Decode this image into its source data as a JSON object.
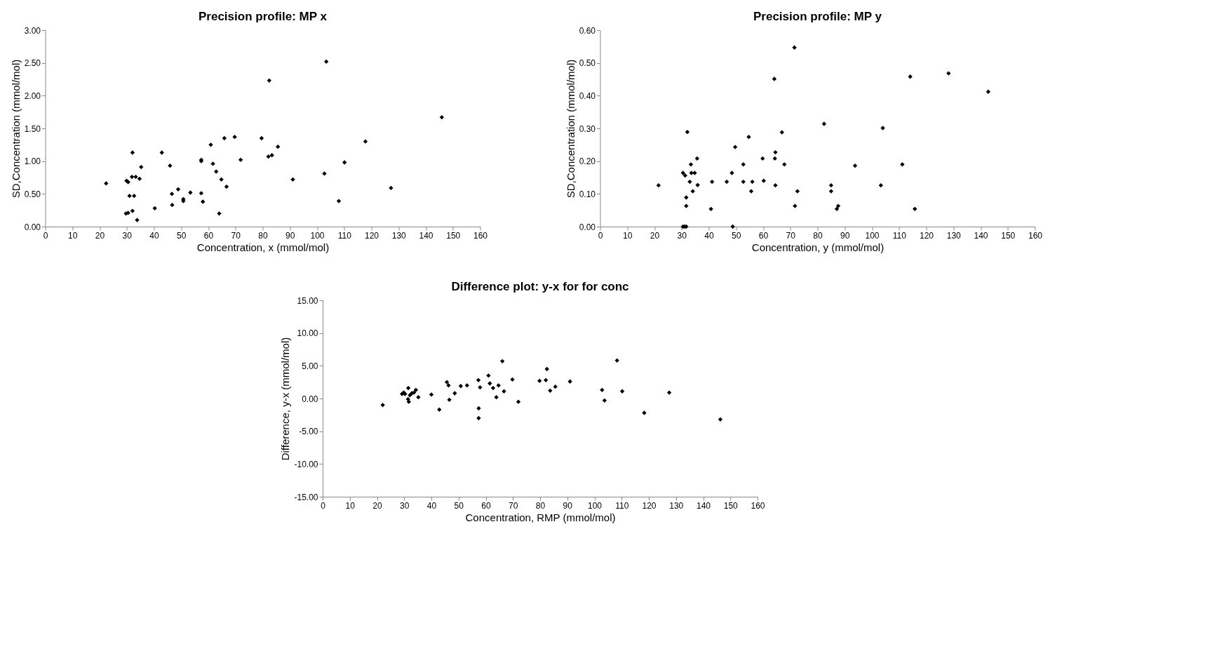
{
  "chart_data": [
    {
      "type": "scatter",
      "title": "Precision profile: MP x",
      "xlabel": "Concentration, x (mmol/mol)",
      "ylabel": "SD,Concentration (mmol/mol)",
      "marker": "diamond",
      "series": [
        {
          "color": "#000000",
          "x": [
            22.4,
            29.9,
            30.5,
            31,
            32.7,
            32.1,
            31.9,
            33.3,
            34.7,
            35.3,
            29.7,
            30.5,
            32.1,
            33.8,
            40.3,
            42.9,
            45.9,
            46.6,
            46.7,
            48.9,
            50.8,
            50.8,
            53.4,
            57.4,
            57.4,
            57.4,
            58.0,
            60.9,
            61.7,
            62.9,
            64.8,
            64.0,
            65.9,
            66.7,
            69.7,
            71.9,
            79.6,
            82.4,
            82.1,
            83.4,
            85.6,
            91.1,
            103.4,
            102.7,
            108.0,
            110.1,
            117.8,
            127.2,
            145.9
          ],
          "values": [
            0.66,
            0.7,
            0.68,
            0.47,
            0.47,
            1.13,
            0.76,
            0.76,
            0.73,
            0.91,
            0.2,
            0.21,
            0.24,
            0.1,
            0.28,
            1.13,
            0.93,
            0.5,
            0.33,
            0.57,
            0.42,
            0.39,
            0.52,
            1.02,
            1.0,
            0.51,
            0.38,
            1.25,
            0.96,
            0.84,
            0.72,
            0.2,
            1.35,
            0.61,
            1.37,
            1.02,
            1.35,
            2.23,
            1.07,
            1.09,
            1.22,
            0.72,
            2.52,
            0.81,
            0.39,
            0.98,
            1.3,
            0.59,
            1.67
          ]
        }
      ],
      "xlim": [
        0,
        160
      ],
      "xticks": [
        0,
        10,
        20,
        30,
        40,
        50,
        60,
        70,
        80,
        90,
        100,
        110,
        120,
        130,
        140,
        150,
        160
      ],
      "ylim": [
        0,
        3
      ],
      "yticks": [
        {
          "value": 0,
          "label": "0.00"
        },
        {
          "value": 0.5,
          "label": "0.50"
        },
        {
          "value": 1,
          "label": "1.00"
        },
        {
          "value": 1.5,
          "label": "1.50"
        },
        {
          "value": 2,
          "label": "2.00"
        },
        {
          "value": 2.5,
          "label": "2.50"
        },
        {
          "value": 3,
          "label": "3.00"
        }
      ]
    },
    {
      "type": "scatter",
      "title": "Precision profile: MP y",
      "xlabel": "Concentration, y (mmol/mol)",
      "ylabel": "SD,Concentration (mmol/mol)",
      "marker": "diamond",
      "series": [
        {
          "color": "#000000",
          "x": [
            21.5,
            30.5,
            31.3,
            31.7,
            31.7,
            30.5,
            31.1,
            31.7,
            32.1,
            33.4,
            33.0,
            33.6,
            34.8,
            34.1,
            35.7,
            35.9,
            40.8,
            41.2,
            46.6,
            48.5,
            48.8,
            49.7,
            52.7,
            52.7,
            54.7,
            55.6,
            56.0,
            59.8,
            60.2,
            64.1,
            64.5,
            64.3,
            64.5,
            66.9,
            67.8,
            71.5,
            71.7,
            72.6,
            82.4,
            85.0,
            85.0,
            87.1,
            87.6,
            93.8,
            103.3,
            104.0,
            111.2,
            114.1,
            115.8,
            128.2,
            142.8
          ],
          "values": [
            0.126,
            0.164,
            0.156,
            0.089,
            0.063,
            0,
            0,
            0,
            0.289,
            0.19,
            0.137,
            0.164,
            0.164,
            0.108,
            0.208,
            0.127,
            0.054,
            0.137,
            0.137,
            0.164,
            0,
            0.243,
            0.19,
            0.137,
            0.274,
            0.108,
            0.137,
            0.208,
            0.14,
            0.451,
            0.227,
            0.208,
            0.126,
            0.288,
            0.19,
            0.547,
            0.063,
            0.108,
            0.314,
            0.126,
            0.108,
            0.054,
            0.063,
            0.186,
            0.126,
            0.301,
            0.19,
            0.458,
            0.054,
            0.468,
            0.412
          ]
        }
      ],
      "xlim": [
        0,
        160
      ],
      "xticks": [
        0,
        10,
        20,
        30,
        40,
        50,
        60,
        70,
        80,
        90,
        100,
        110,
        120,
        130,
        140,
        150,
        160
      ],
      "ylim": [
        0,
        0.6
      ],
      "yticks": [
        {
          "value": 0,
          "label": "0.00"
        },
        {
          "value": 0.1,
          "label": "0.10"
        },
        {
          "value": 0.2,
          "label": "0.20"
        },
        {
          "value": 0.3,
          "label": "0.30"
        },
        {
          "value": 0.4,
          "label": "0.40"
        },
        {
          "value": 0.5,
          "label": "0.50"
        },
        {
          "value": 0.6,
          "label": "0.60"
        }
      ]
    },
    {
      "type": "scatter",
      "title": "Difference plot: y-x for for conc",
      "xlabel": "Concentration, RMP (mmol/mol)",
      "ylabel": "Difference, y-x (mmol/mol)",
      "marker": "diamond",
      "series": [
        {
          "color": "#000000",
          "x": [
            22.1,
            29.2,
            29.8,
            30.3,
            31.5,
            31.4,
            31.7,
            32.1,
            32.8,
            33.6,
            34.3,
            35.2,
            40.0,
            42.9,
            45.7,
            46.3,
            46.6,
            48.6,
            50.8,
            53.1,
            57.3,
            57.4,
            57.4,
            57.9,
            61.0,
            61.5,
            62.7,
            64.7,
            63.9,
            66.1,
            66.7,
            69.8,
            72.0,
            79.8,
            82.1,
            82.5,
            83.7,
            85.6,
            91.0,
            102.8,
            103.7,
            108.3,
            110.2,
            118.3,
            127.5,
            146.3
          ],
          "values": [
            -1.0,
            0.7,
            0.9,
            0.7,
            1.6,
            -0.1,
            -0.5,
            0.5,
            0.8,
            0.9,
            1.3,
            0.2,
            0.6,
            -1.7,
            2.5,
            2.0,
            -0.2,
            0.8,
            1.9,
            2.0,
            2.8,
            -1.5,
            -3.0,
            1.7,
            3.5,
            2.3,
            1.6,
            2.0,
            0.2,
            5.7,
            1.1,
            2.9,
            -0.5,
            2.7,
            2.8,
            4.5,
            1.2,
            1.8,
            2.6,
            1.3,
            -0.3,
            5.8,
            1.1,
            -2.2,
            0.9,
            -3.2
          ]
        }
      ],
      "xlim": [
        0,
        160
      ],
      "xticks": [
        0,
        10,
        20,
        30,
        40,
        50,
        60,
        70,
        80,
        90,
        100,
        110,
        120,
        130,
        140,
        150,
        160
      ],
      "ylim": [
        -15,
        15
      ],
      "yticks": [
        {
          "value": -15,
          "label": "-15.00"
        },
        {
          "value": -10,
          "label": "-10.00"
        },
        {
          "value": -5,
          "label": "-5.00"
        },
        {
          "value": 0,
          "label": "0.00"
        },
        {
          "value": 5,
          "label": "5.00"
        },
        {
          "value": 10,
          "label": "10.00"
        },
        {
          "value": 15,
          "label": "15.00"
        }
      ]
    }
  ]
}
